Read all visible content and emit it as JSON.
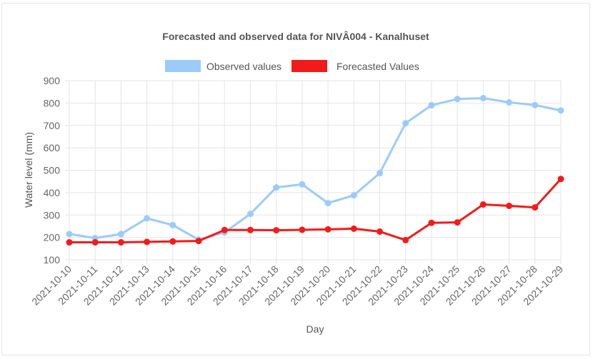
{
  "chart_data": {
    "type": "line",
    "title": "Forecasted and observed data for NIVÂ004 - Kanalhuset",
    "xlabel": "Day",
    "ylabel": "Water level (mm)",
    "ylim": [
      100,
      900
    ],
    "yticks": [
      100,
      200,
      300,
      400,
      500,
      600,
      700,
      800,
      900
    ],
    "grid": true,
    "legend_position": "top",
    "categories": [
      "2021-10-10",
      "2021-10-11",
      "2021-10-12",
      "2021-10-13",
      "2021-10-14",
      "2021-10-15",
      "2021-10-16",
      "2021-10-17",
      "2021-10-18",
      "2021-10-19",
      "2021-10-20",
      "2021-10-21",
      "2021-10-22",
      "2021-10-23",
      "2021-10-24",
      "2021-10-25",
      "2021-10-26",
      "2021-10-27",
      "2021-10-28",
      "2021-10-29"
    ],
    "series": [
      {
        "name": "Observed values",
        "color": "#9ccbf8",
        "values": [
          215,
          197,
          215,
          285,
          255,
          190,
          222,
          305,
          423,
          437,
          353,
          388,
          487,
          710,
          790,
          818,
          822,
          803,
          791,
          767
        ]
      },
      {
        "name": "Forecasted Values",
        "color": "#f21b1b",
        "values": [
          178,
          178,
          178,
          180,
          182,
          184,
          233,
          233,
          232,
          234,
          236,
          239,
          226,
          188,
          265,
          267,
          347,
          341,
          334,
          461
        ]
      }
    ]
  }
}
